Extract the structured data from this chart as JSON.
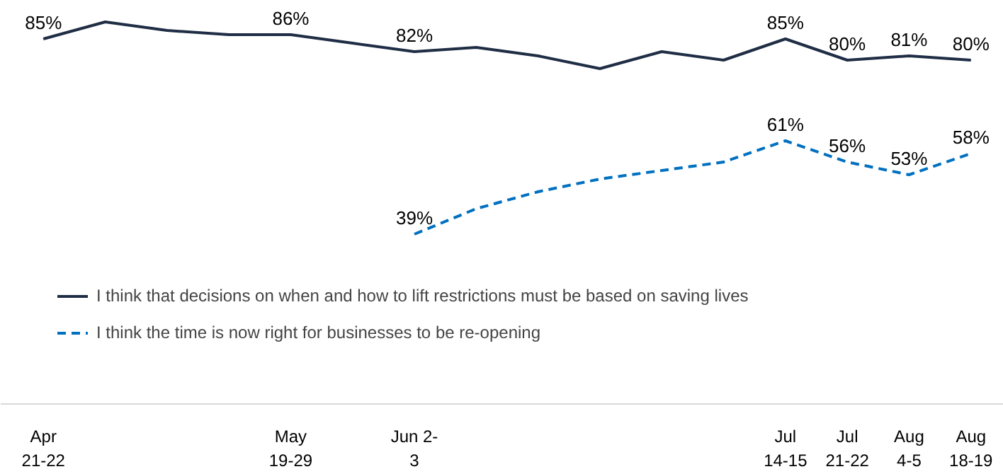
{
  "chart_data": {
    "type": "line",
    "categories": [
      "Apr\n21-22",
      null,
      null,
      null,
      "May\n19-29",
      null,
      "Jun 2-\n3",
      null,
      null,
      null,
      null,
      null,
      "Jul\n14-15",
      "Jul\n21-22",
      "Aug\n4-5",
      "Aug\n18-19"
    ],
    "series": [
      {
        "name": "I think that decisions on when and how to lift restrictions must be based on saving lives",
        "color": "#1f2d45",
        "line_style": "solid",
        "values": [
          85,
          89,
          87,
          86,
          86,
          84,
          82,
          83,
          81,
          78,
          82,
          80,
          85,
          80,
          81,
          80
        ],
        "value_labels": [
          "85%",
          null,
          null,
          null,
          "86%",
          null,
          "82%",
          null,
          null,
          null,
          null,
          null,
          "85%",
          "80%",
          "81%",
          "80%"
        ]
      },
      {
        "name": "I think the time is now right for businesses to be re-opening",
        "color": "#0070c0",
        "line_style": "dashed",
        "values": [
          null,
          null,
          null,
          null,
          null,
          null,
          39,
          45,
          49,
          52,
          54,
          56,
          61,
          56,
          53,
          58
        ],
        "value_labels": [
          null,
          null,
          null,
          null,
          null,
          null,
          "39%",
          null,
          null,
          null,
          null,
          null,
          "61%",
          "56%",
          "53%",
          "58%"
        ]
      }
    ],
    "legend": "bottom"
  }
}
